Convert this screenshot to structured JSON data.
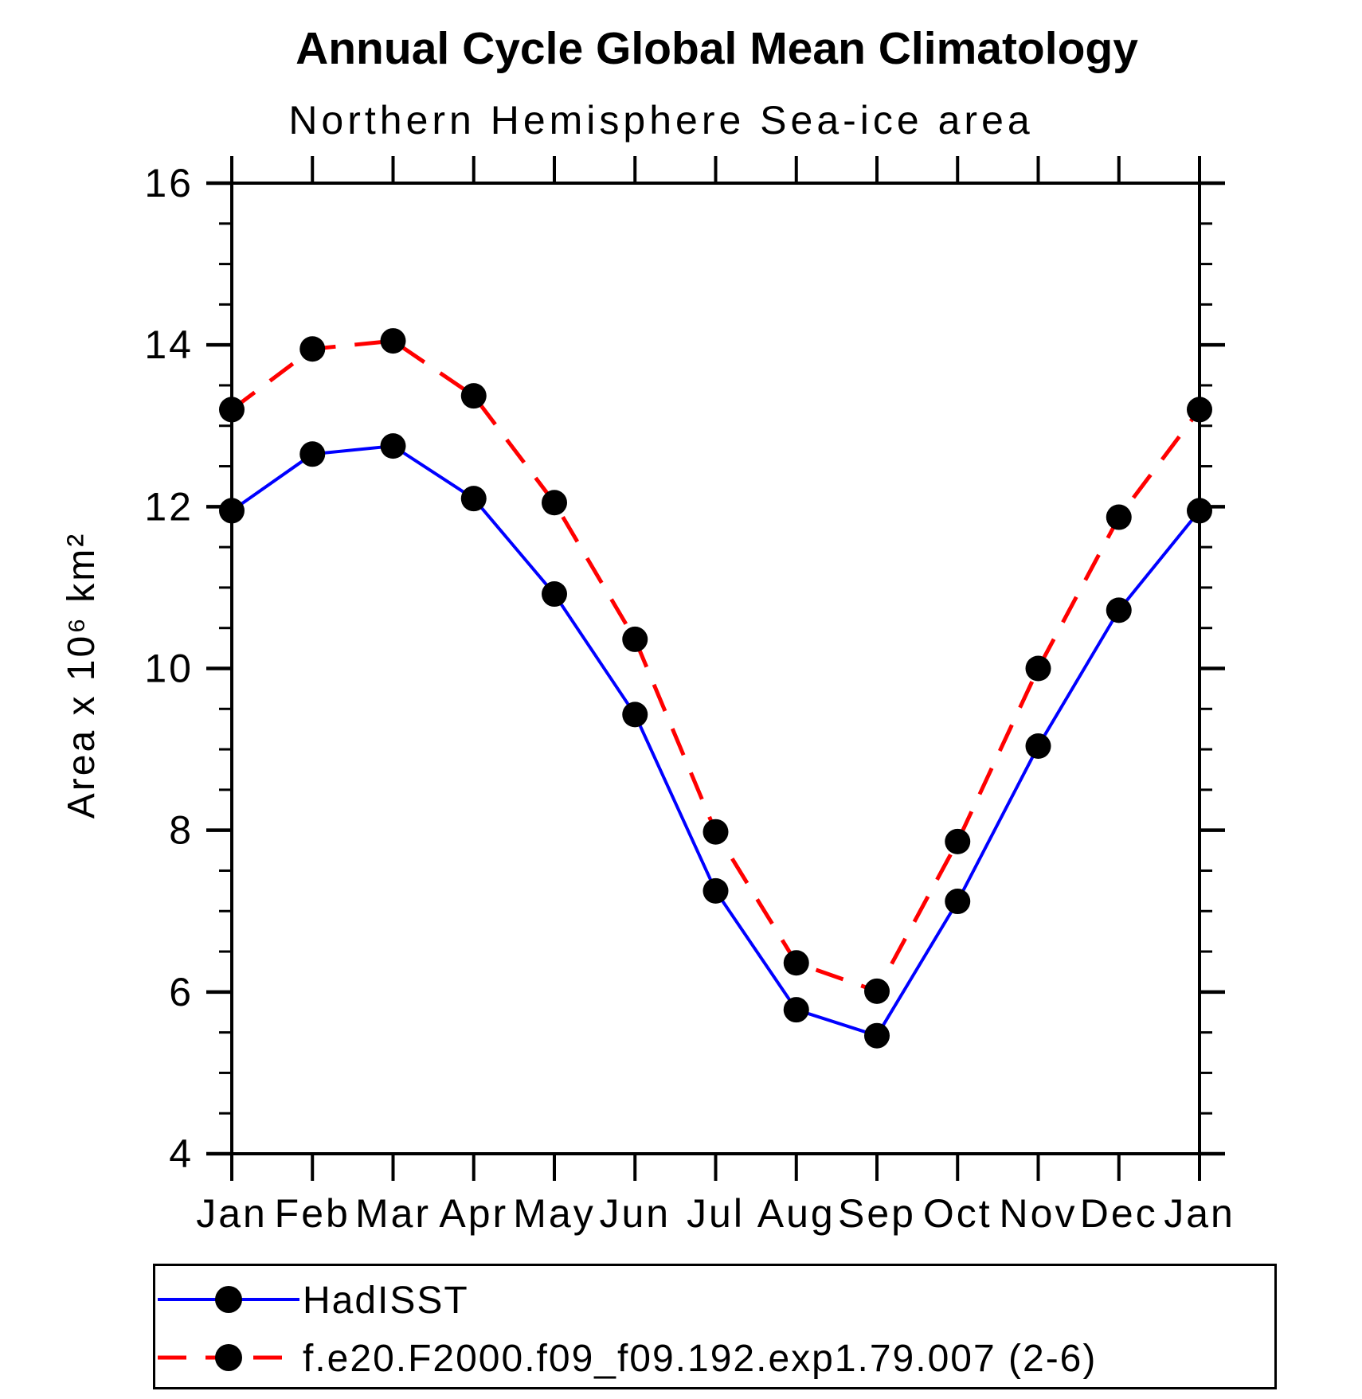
{
  "chart_data": {
    "type": "line",
    "title": "Annual Cycle Global Mean Climatology",
    "subtitle": "Northern Hemisphere Sea-ice area",
    "ylabel": "Area x 10⁶ km²",
    "xlabel": "",
    "categories": [
      "Jan",
      "Feb",
      "Mar",
      "Apr",
      "May",
      "Jun",
      "Jul",
      "Aug",
      "Sep",
      "Oct",
      "Nov",
      "Dec",
      "Jan"
    ],
    "series": [
      {
        "name": "HadISST",
        "color": "#0000ff",
        "style": "solid",
        "marker": "circle",
        "marker_color": "#000000",
        "values": [
          11.95,
          12.65,
          12.75,
          12.1,
          10.92,
          9.43,
          7.25,
          5.78,
          5.46,
          7.12,
          9.04,
          10.72,
          11.95
        ]
      },
      {
        "name": "f.e20.F2000.f09_f09.192.exp1.79.007 (2-6)",
        "color": "#ff0000",
        "style": "dashed",
        "marker": "circle",
        "marker_color": "#000000",
        "values": [
          13.2,
          13.95,
          14.05,
          13.37,
          12.05,
          10.36,
          7.98,
          6.36,
          6.01,
          7.86,
          10.0,
          11.87,
          13.2
        ]
      }
    ],
    "ylim": [
      4,
      16
    ],
    "ytick_major": 2,
    "ytick_minor": 0.5,
    "grid": false,
    "legend_position": "bottom",
    "axis_color": "#000000",
    "background": "#ffffff"
  }
}
